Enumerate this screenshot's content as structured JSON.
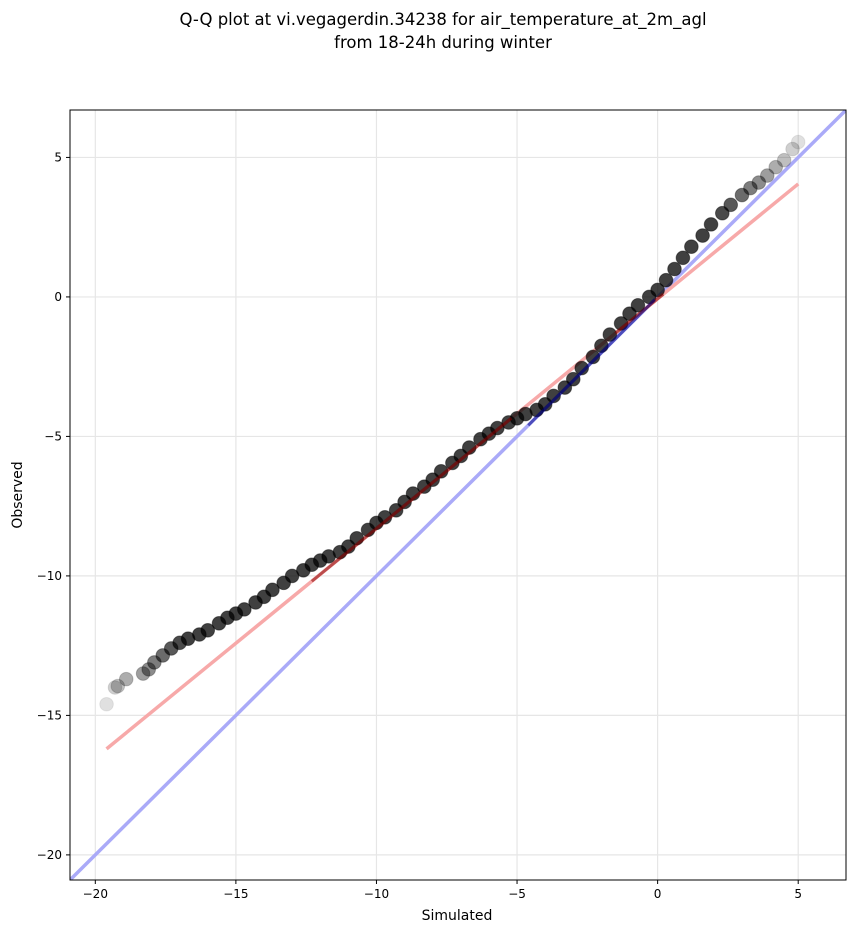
{
  "chart_data": {
    "type": "scatter",
    "title": "Q-Q plot at vi.vegagerdin.34238 for air_temperature_at_2m_agl",
    "subtitle": "from 18-24h during winter",
    "xlabel": "Simulated",
    "ylabel": "Observed",
    "xlim": [
      -20.9,
      6.7
    ],
    "ylim": [
      -20.9,
      6.7
    ],
    "xticks": [
      -20,
      -15,
      -10,
      -5,
      0,
      5
    ],
    "yticks": [
      -20,
      -15,
      -10,
      -5,
      0,
      5
    ],
    "xtick_labels": [
      "−20",
      "−15",
      "−10",
      "−5",
      "0",
      "5"
    ],
    "ytick_labels": [
      "−20",
      "−15",
      "−10",
      "−5",
      "0",
      "5"
    ],
    "grid": true,
    "colors": {
      "points": "#000000",
      "identity_line": "#aaaaf8",
      "fit_line": "#f7a9a9",
      "fit_overlay": "#8b0000",
      "identity_overlay": "#00008b"
    },
    "series": [
      {
        "kind": "quantiles",
        "x": [
          -19.6,
          -19.3,
          -19.2,
          -18.9,
          -18.3,
          -18.1,
          -17.9,
          -17.6,
          -17.3,
          -17.0,
          -16.7,
          -16.3,
          -16.0,
          -15.6,
          -15.3,
          -15.0,
          -14.7,
          -14.3,
          -14.0,
          -13.7,
          -13.3,
          -13.0,
          -12.6,
          -12.3,
          -12.0,
          -11.7,
          -11.3,
          -11.0,
          -10.7,
          -10.3,
          -10.0,
          -9.7,
          -9.3,
          -9.0,
          -8.7,
          -8.3,
          -8.0,
          -7.7,
          -7.3,
          -7.0,
          -6.7,
          -6.3,
          -6.0,
          -5.7,
          -5.3,
          -5.0,
          -4.7,
          -4.3,
          -4.0,
          -3.7,
          -3.3,
          -3.0,
          -2.7,
          -2.3,
          -2.0,
          -1.7,
          -1.3,
          -1.0,
          -0.7,
          -0.3,
          0.0,
          0.3,
          0.6,
          0.9,
          1.2,
          1.6,
          1.9,
          2.3,
          2.6,
          3.0,
          3.3,
          3.6,
          3.9,
          4.2,
          4.5,
          4.8,
          5.0
        ],
        "y": [
          -14.6,
          -14.0,
          -13.95,
          -13.7,
          -13.5,
          -13.35,
          -13.1,
          -12.85,
          -12.6,
          -12.4,
          -12.25,
          -12.1,
          -11.95,
          -11.7,
          -11.5,
          -11.35,
          -11.2,
          -10.95,
          -10.75,
          -10.5,
          -10.25,
          -10.0,
          -9.8,
          -9.6,
          -9.45,
          -9.3,
          -9.15,
          -8.95,
          -8.65,
          -8.35,
          -8.1,
          -7.9,
          -7.65,
          -7.35,
          -7.05,
          -6.8,
          -6.55,
          -6.25,
          -5.95,
          -5.7,
          -5.4,
          -5.1,
          -4.9,
          -4.7,
          -4.5,
          -4.35,
          -4.2,
          -4.05,
          -3.85,
          -3.55,
          -3.25,
          -2.95,
          -2.55,
          -2.15,
          -1.75,
          -1.35,
          -0.95,
          -0.6,
          -0.3,
          0.0,
          0.25,
          0.6,
          1.0,
          1.4,
          1.8,
          2.2,
          2.6,
          3.0,
          3.3,
          3.65,
          3.9,
          4.1,
          4.35,
          4.65,
          4.9,
          5.3,
          5.55
        ]
      },
      {
        "kind": "identity_line",
        "x": [
          -20.9,
          6.7
        ],
        "y": [
          -20.9,
          6.7
        ]
      },
      {
        "kind": "fit_line",
        "x": [
          -19.6,
          5.0
        ],
        "y": [
          -16.2,
          4.05
        ]
      }
    ]
  }
}
